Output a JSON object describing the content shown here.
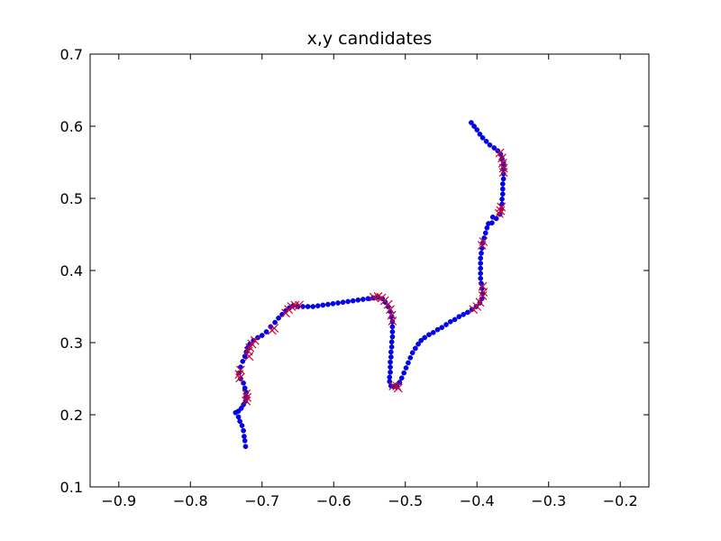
{
  "chart_data": {
    "type": "scatter",
    "title": "x,y candidates",
    "xlabel": "",
    "ylabel": "",
    "xlim": [
      -0.94,
      -0.16
    ],
    "ylim": [
      0.1,
      0.7
    ],
    "xticks": [
      -0.9,
      -0.8,
      -0.7,
      -0.6,
      -0.5,
      -0.4,
      -0.3,
      -0.2
    ],
    "yticks": [
      0.1,
      0.2,
      0.3,
      0.4,
      0.5,
      0.6,
      0.7
    ],
    "xtick_labels": [
      "−0.9",
      "−0.8",
      "−0.7",
      "−0.6",
      "−0.5",
      "−0.4",
      "−0.3",
      "−0.2"
    ],
    "ytick_labels": [
      "0.1",
      "0.2",
      "0.3",
      "0.4",
      "0.5",
      "0.6",
      "0.7"
    ],
    "grid": false,
    "legend": "none",
    "series": [
      {
        "marker": "dot",
        "color": "#0000ff",
        "points": [
          [
            -0.408,
            0.605
          ],
          [
            -0.404,
            0.6
          ],
          [
            -0.4,
            0.595
          ],
          [
            -0.396,
            0.589
          ],
          [
            -0.392,
            0.584
          ],
          [
            -0.387,
            0.579
          ],
          [
            -0.382,
            0.574
          ],
          [
            -0.376,
            0.57
          ],
          [
            -0.371,
            0.566
          ],
          [
            -0.367,
            0.561
          ],
          [
            -0.365,
            0.555
          ],
          [
            -0.363,
            0.548
          ],
          [
            -0.363,
            0.541
          ],
          [
            -0.363,
            0.534
          ],
          [
            -0.363,
            0.527
          ],
          [
            -0.364,
            0.52
          ],
          [
            -0.364,
            0.513
          ],
          [
            -0.364,
            0.506
          ],
          [
            -0.365,
            0.499
          ],
          [
            -0.365,
            0.492
          ],
          [
            -0.366,
            0.485
          ],
          [
            -0.368,
            0.478
          ],
          [
            -0.373,
            0.472
          ],
          [
            -0.379,
            0.466
          ],
          [
            -0.378,
            0.474
          ],
          [
            -0.384,
            0.465
          ],
          [
            -0.386,
            0.459
          ],
          [
            -0.388,
            0.452
          ],
          [
            -0.39,
            0.445
          ],
          [
            -0.392,
            0.438
          ],
          [
            -0.393,
            0.431
          ],
          [
            -0.394,
            0.424
          ],
          [
            -0.395,
            0.417
          ],
          [
            -0.395,
            0.41
          ],
          [
            -0.395,
            0.403
          ],
          [
            -0.395,
            0.396
          ],
          [
            -0.395,
            0.389
          ],
          [
            -0.394,
            0.382
          ],
          [
            -0.393,
            0.375
          ],
          [
            -0.392,
            0.368
          ],
          [
            -0.393,
            0.361
          ],
          [
            -0.396,
            0.355
          ],
          [
            -0.401,
            0.35
          ],
          [
            -0.407,
            0.346
          ],
          [
            -0.413,
            0.342
          ],
          [
            -0.419,
            0.339
          ],
          [
            -0.425,
            0.336
          ],
          [
            -0.431,
            0.332
          ],
          [
            -0.437,
            0.329
          ],
          [
            -0.443,
            0.325
          ],
          [
            -0.449,
            0.321
          ],
          [
            -0.455,
            0.318
          ],
          [
            -0.461,
            0.314
          ],
          [
            -0.467,
            0.311
          ],
          [
            -0.473,
            0.307
          ],
          [
            -0.478,
            0.303
          ],
          [
            -0.482,
            0.298
          ],
          [
            -0.486,
            0.292
          ],
          [
            -0.49,
            0.286
          ],
          [
            -0.493,
            0.279
          ],
          [
            -0.496,
            0.272
          ],
          [
            -0.499,
            0.265
          ],
          [
            -0.502,
            0.258
          ],
          [
            -0.505,
            0.251
          ],
          [
            -0.508,
            0.245
          ],
          [
            -0.512,
            0.24
          ],
          [
            -0.516,
            0.239
          ],
          [
            -0.52,
            0.24
          ],
          [
            -0.522,
            0.246
          ],
          [
            -0.522,
            0.252
          ],
          [
            -0.521,
            0.259
          ],
          [
            -0.521,
            0.266
          ],
          [
            -0.521,
            0.273
          ],
          [
            -0.52,
            0.28
          ],
          [
            -0.52,
            0.287
          ],
          [
            -0.519,
            0.294
          ],
          [
            -0.519,
            0.301
          ],
          [
            -0.518,
            0.308
          ],
          [
            -0.518,
            0.315
          ],
          [
            -0.518,
            0.322
          ],
          [
            -0.518,
            0.329
          ],
          [
            -0.519,
            0.336
          ],
          [
            -0.521,
            0.343
          ],
          [
            -0.524,
            0.35
          ],
          [
            -0.528,
            0.356
          ],
          [
            -0.532,
            0.361
          ],
          [
            -0.538,
            0.363
          ],
          [
            -0.545,
            0.362
          ],
          [
            -0.552,
            0.361
          ],
          [
            -0.559,
            0.36
          ],
          [
            -0.566,
            0.359
          ],
          [
            -0.573,
            0.358
          ],
          [
            -0.58,
            0.357
          ],
          [
            -0.587,
            0.356
          ],
          [
            -0.594,
            0.355
          ],
          [
            -0.601,
            0.354
          ],
          [
            -0.608,
            0.353
          ],
          [
            -0.615,
            0.352
          ],
          [
            -0.622,
            0.351
          ],
          [
            -0.629,
            0.35
          ],
          [
            -0.636,
            0.35
          ],
          [
            -0.643,
            0.35
          ],
          [
            -0.65,
            0.35
          ],
          [
            -0.657,
            0.351
          ],
          [
            -0.662,
            0.348
          ],
          [
            -0.667,
            0.344
          ],
          [
            -0.672,
            0.339
          ],
          [
            -0.677,
            0.334
          ],
          [
            -0.682,
            0.328
          ],
          [
            -0.688,
            0.322
          ],
          [
            -0.694,
            0.315
          ],
          [
            -0.7,
            0.31
          ],
          [
            -0.706,
            0.307
          ],
          [
            -0.712,
            0.303
          ],
          [
            -0.717,
            0.298
          ],
          [
            -0.72,
            0.293
          ],
          [
            -0.722,
            0.287
          ],
          [
            -0.724,
            0.281
          ],
          [
            -0.727,
            0.274
          ],
          [
            -0.73,
            0.266
          ],
          [
            -0.732,
            0.258
          ],
          [
            -0.73,
            0.25
          ],
          [
            -0.726,
            0.244
          ],
          [
            -0.724,
            0.237
          ],
          [
            -0.722,
            0.231
          ],
          [
            -0.722,
            0.225
          ],
          [
            -0.723,
            0.219
          ],
          [
            -0.726,
            0.214
          ],
          [
            -0.729,
            0.209
          ],
          [
            -0.733,
            0.205
          ],
          [
            -0.737,
            0.203
          ],
          [
            -0.733,
            0.197
          ],
          [
            -0.731,
            0.191
          ],
          [
            -0.728,
            0.185
          ],
          [
            -0.726,
            0.178
          ],
          [
            -0.725,
            0.17
          ],
          [
            -0.724,
            0.164
          ],
          [
            -0.723,
            0.156
          ]
        ]
      },
      {
        "marker": "x",
        "color": "#cc0033",
        "points": [
          [
            -0.368,
            0.563
          ],
          [
            -0.365,
            0.556
          ],
          [
            -0.364,
            0.549
          ],
          [
            -0.363,
            0.542
          ],
          [
            -0.363,
            0.536
          ],
          [
            -0.366,
            0.488
          ],
          [
            -0.367,
            0.483
          ],
          [
            -0.369,
            0.479
          ],
          [
            -0.391,
            0.44
          ],
          [
            -0.393,
            0.435
          ],
          [
            -0.392,
            0.378
          ],
          [
            -0.391,
            0.37
          ],
          [
            -0.392,
            0.365
          ],
          [
            -0.396,
            0.356
          ],
          [
            -0.4,
            0.35
          ],
          [
            -0.405,
            0.346
          ],
          [
            -0.512,
            0.24
          ],
          [
            -0.517,
            0.24
          ],
          [
            -0.51,
            0.237
          ],
          [
            -0.518,
            0.33
          ],
          [
            -0.519,
            0.338
          ],
          [
            -0.521,
            0.346
          ],
          [
            -0.524,
            0.353
          ],
          [
            -0.529,
            0.358
          ],
          [
            -0.533,
            0.362
          ],
          [
            -0.538,
            0.364
          ],
          [
            -0.544,
            0.363
          ],
          [
            -0.648,
            0.352
          ],
          [
            -0.654,
            0.352
          ],
          [
            -0.659,
            0.35
          ],
          [
            -0.663,
            0.346
          ],
          [
            -0.667,
            0.341
          ],
          [
            -0.683,
            0.32
          ],
          [
            -0.686,
            0.317
          ],
          [
            -0.71,
            0.303
          ],
          [
            -0.714,
            0.298
          ],
          [
            -0.717,
            0.293
          ],
          [
            -0.719,
            0.288
          ],
          [
            -0.718,
            0.281
          ],
          [
            -0.73,
            0.262
          ],
          [
            -0.732,
            0.256
          ],
          [
            -0.731,
            0.251
          ],
          [
            -0.722,
            0.229
          ],
          [
            -0.721,
            0.224
          ],
          [
            -0.722,
            0.219
          ]
        ]
      }
    ]
  }
}
